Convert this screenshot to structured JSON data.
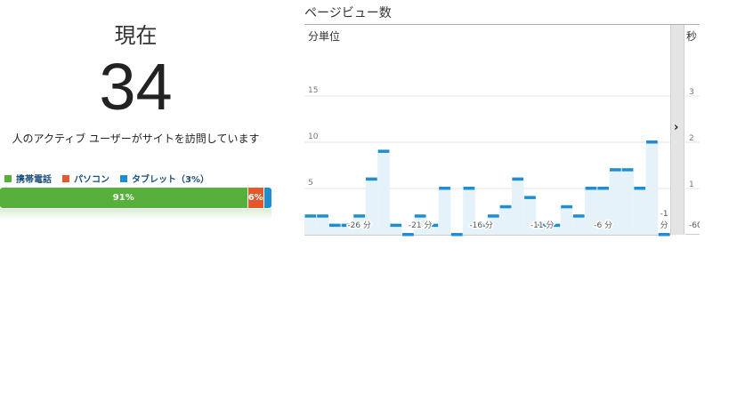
{
  "realtime": {
    "now_label": "現在",
    "active_users": "34",
    "caption": "人のアクティブ ユーザーがサイトを訪問しています"
  },
  "devices": {
    "legend": [
      {
        "label": "携帯電話",
        "color": "#58b03c"
      },
      {
        "label": "パソコン",
        "color": "#e5582b"
      },
      {
        "label": "タブレット（3%）",
        "color": "#1f8dd1"
      }
    ],
    "bar": [
      {
        "label": "91%",
        "percent": 91,
        "color": "#58b03c"
      },
      {
        "label": "6%",
        "percent": 6,
        "color": "#e5582b"
      },
      {
        "label": "",
        "percent": 3,
        "color": "#1f8dd1"
      }
    ]
  },
  "pageviews": {
    "title": "ページビュー数",
    "left_axis_title": "分単位",
    "right_axis_title": "秒",
    "toggle_icon": "chevron-right-icon",
    "bar_color": "#1f8dd1",
    "fill_color": "#e6f2fa"
  },
  "chart_data": {
    "type": "bar",
    "xlabel": "",
    "ylabel": "分単位",
    "ylim": [
      0,
      20
    ],
    "yticks": [
      5,
      10,
      15
    ],
    "values": [
      2,
      2,
      1,
      1,
      2,
      6,
      9,
      1,
      0,
      2,
      1,
      5,
      0,
      5,
      1,
      2,
      3,
      6,
      4,
      1,
      1,
      3,
      2,
      5,
      5,
      7,
      7,
      5,
      10,
      0
    ],
    "x_tick_labels": [
      {
        "label": "-26 分",
        "index": 4
      },
      {
        "label": "-21 分",
        "index": 9
      },
      {
        "label": "-16 分",
        "index": 14
      },
      {
        "label": "-11 分",
        "index": 19
      },
      {
        "label": "-6 分",
        "index": 24
      },
      {
        "label": "-1",
        "index": 29
      },
      {
        "label": "分",
        "index": 29
      }
    ],
    "right_axis": {
      "title": "秒",
      "ylim": [
        0,
        4
      ],
      "tick_labels": [
        "3",
        "2",
        "1"
      ],
      "tick_values": [
        3,
        2,
        1
      ],
      "x_tick_label": "-60"
    },
    "grid": true
  }
}
